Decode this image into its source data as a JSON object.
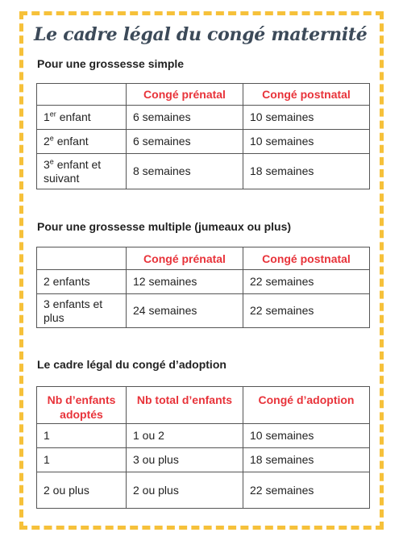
{
  "title": "Le cadre légal du congé maternité",
  "simple": {
    "heading": "Pour une grossesse simple",
    "headers": [
      "",
      "Congé prénatal",
      "Congé postnatal"
    ],
    "rows": [
      {
        "label_num": "1",
        "label_sup": "er",
        "label_rest": " enfant",
        "prenatal": "6 semaines",
        "postnatal": "10 semaines"
      },
      {
        "label_num": "2",
        "label_sup": "e",
        "label_rest": " enfant",
        "prenatal": "6 semaines",
        "postnatal": "10 semaines"
      },
      {
        "label_num": "3",
        "label_sup": "e",
        "label_rest": " enfant et suivant",
        "prenatal": "8 semaines",
        "postnatal": "18 semaines"
      }
    ]
  },
  "multiple": {
    "heading": "Pour une grossesse multiple (jumeaux ou plus)",
    "headers": [
      "",
      "Congé prénatal",
      "Congé postnatal"
    ],
    "rows": [
      {
        "label": "2 enfants",
        "prenatal": "12 semaines",
        "postnatal": "22 semaines"
      },
      {
        "label": "3 enfants et plus",
        "prenatal": "24 semaines",
        "postnatal": "22 semaines"
      }
    ]
  },
  "adoption": {
    "heading": "Le cadre légal du congé d’adoption",
    "headers": [
      "Nb d’enfants adoptés",
      "Nb total d’enfants",
      "Congé d’adoption"
    ],
    "rows": [
      {
        "adopted": "1",
        "total": "1 ou 2",
        "leave": "10 semaines"
      },
      {
        "adopted": "1",
        "total": "3 ou plus",
        "leave": "18 semaines"
      },
      {
        "adopted": "2 ou plus",
        "total": "2 ou plus",
        "leave": "22 semaines"
      }
    ]
  },
  "colors": {
    "border_dash": "#f6c13a",
    "title": "#3c4a59",
    "header_text": "#e8333a"
  }
}
